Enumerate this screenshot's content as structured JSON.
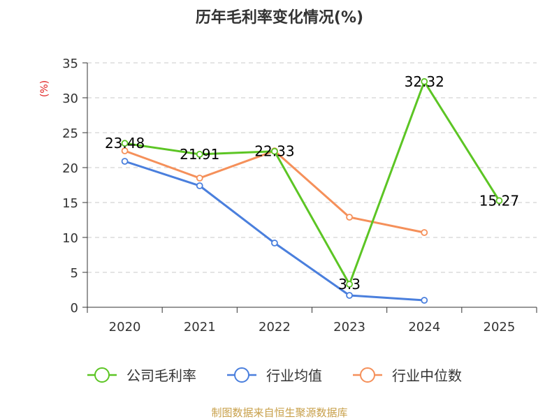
{
  "chart_data": {
    "type": "line",
    "title": "历年毛利率变化情况(%)",
    "ylabel": "(%)",
    "categories": [
      "2020",
      "2021",
      "2022",
      "2023",
      "2024",
      "2025"
    ],
    "ylim": [
      0,
      35
    ],
    "yticks": [
      0,
      5,
      10,
      15,
      20,
      25,
      30,
      35
    ],
    "grid": true,
    "legend_position": "bottom",
    "series": [
      {
        "name": "公司毛利率",
        "color": "#5cc524",
        "values": [
          23.48,
          21.91,
          22.33,
          3.3,
          32.32,
          15.27
        ],
        "labels": [
          "23.48",
          "21.91",
          "22.33",
          "3.3",
          "32.32",
          "15.27"
        ]
      },
      {
        "name": "行业均值",
        "color": "#4a7fdd",
        "values": [
          20.9,
          17.4,
          9.2,
          1.7,
          1.0,
          null
        ]
      },
      {
        "name": "行业中位数",
        "color": "#f5905a",
        "values": [
          22.4,
          18.5,
          22.4,
          12.9,
          10.7,
          null
        ]
      }
    ]
  },
  "source_note": "制图数据来自恒生聚源数据库"
}
